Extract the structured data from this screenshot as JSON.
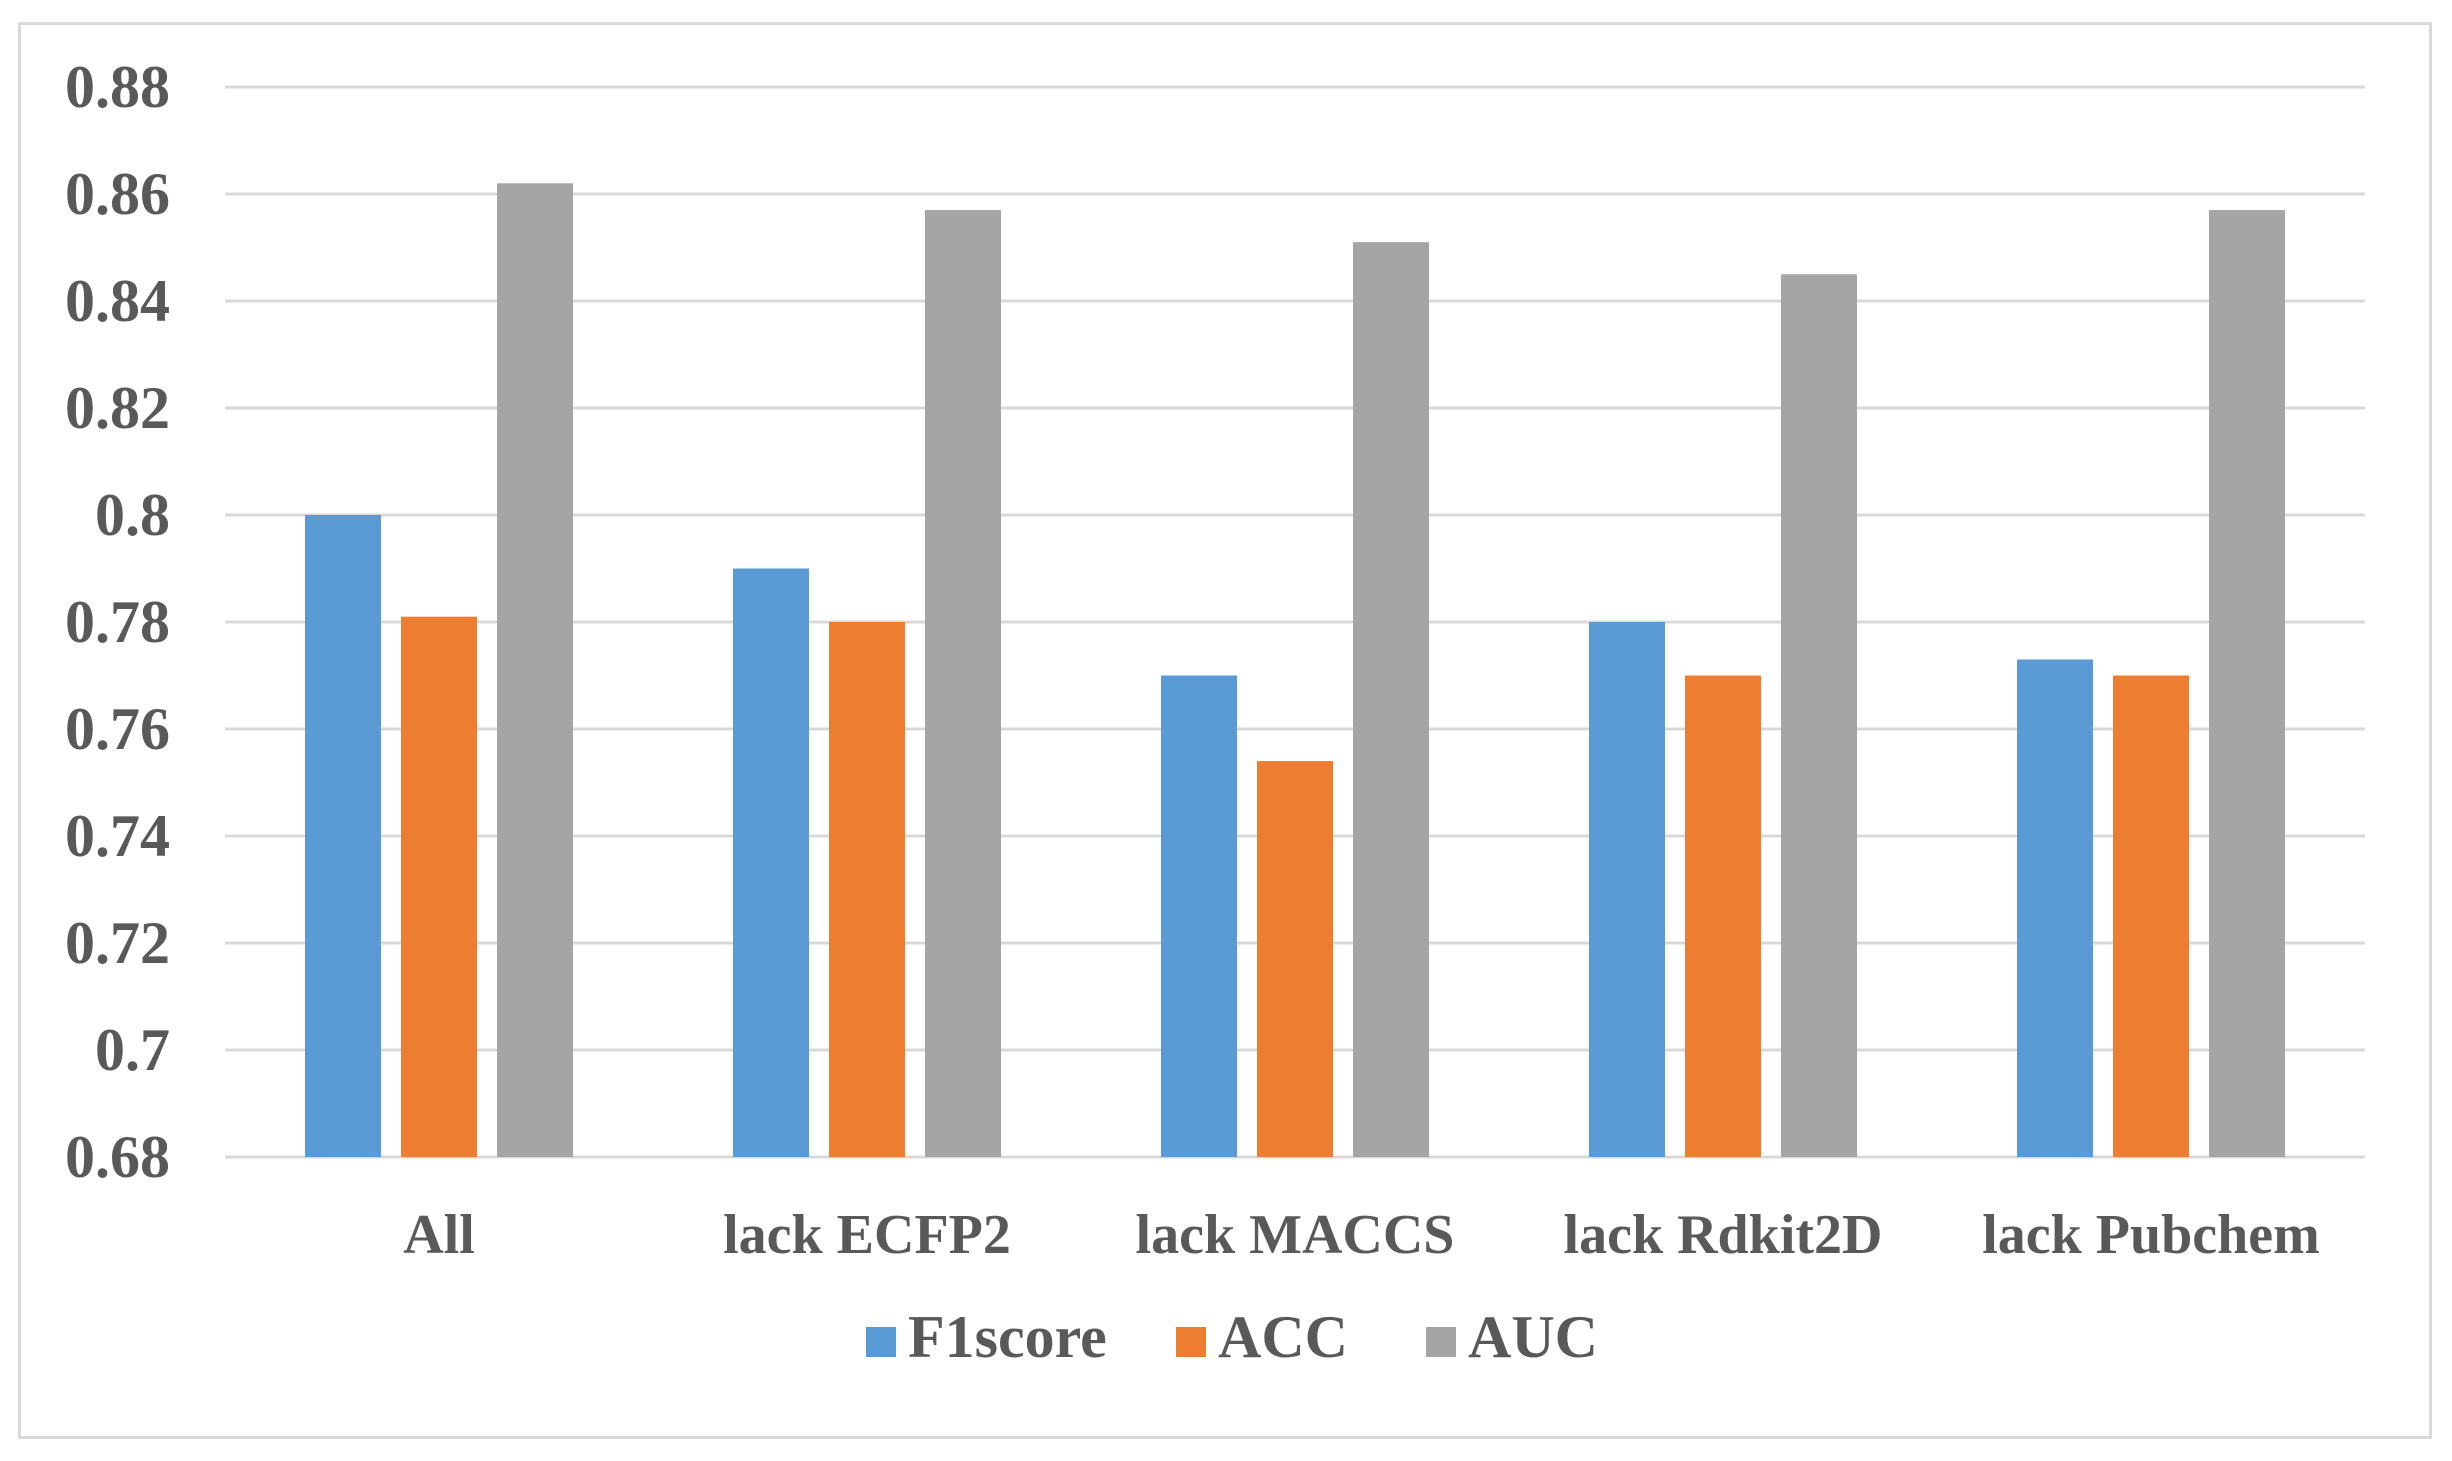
{
  "chart_data": {
    "type": "bar",
    "categories": [
      "All",
      "lack ECFP2",
      "lack MACCS",
      "lack Rdkit2D",
      "lack Pubchem"
    ],
    "series": [
      {
        "name": "F1score",
        "color": "#5b9bd5",
        "values": [
          0.8,
          0.79,
          0.77,
          0.78,
          0.773
        ]
      },
      {
        "name": "ACC",
        "color": "#ed7d31",
        "values": [
          0.781,
          0.78,
          0.754,
          0.77,
          0.77
        ]
      },
      {
        "name": "AUC",
        "color": "#a5a5a5",
        "values": [
          0.862,
          0.857,
          0.851,
          0.845,
          0.857
        ]
      }
    ],
    "ylim": [
      0.68,
      0.88
    ],
    "yticks": [
      "0.68",
      "0.7",
      "0.72",
      "0.74",
      "0.76",
      "0.78",
      "0.8",
      "0.82",
      "0.84",
      "0.86",
      "0.88"
    ],
    "title": "",
    "xlabel": "",
    "ylabel": "",
    "grid": true,
    "legend_position": "bottom"
  }
}
